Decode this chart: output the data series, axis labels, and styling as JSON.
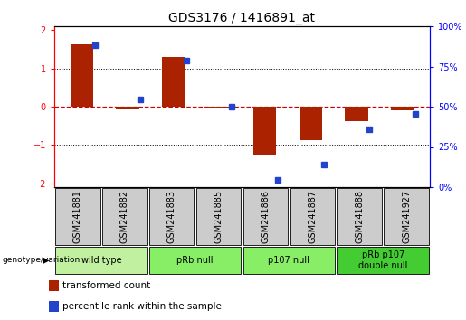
{
  "title": "GDS3176 / 1416891_at",
  "samples": [
    "GSM241881",
    "GSM241882",
    "GSM241883",
    "GSM241885",
    "GSM241886",
    "GSM241887",
    "GSM241888",
    "GSM241927"
  ],
  "red_values": [
    1.62,
    -0.06,
    1.3,
    -0.05,
    -1.28,
    -0.88,
    -0.38,
    -0.1
  ],
  "blue_values": [
    90,
    55,
    80,
    50,
    2,
    12,
    35,
    45
  ],
  "groups": [
    {
      "label": "wild type",
      "start": 0,
      "end": 2,
      "color": "#c0f0a0"
    },
    {
      "label": "pRb null",
      "start": 2,
      "end": 4,
      "color": "#88ee66"
    },
    {
      "label": "p107 null",
      "start": 4,
      "end": 6,
      "color": "#88ee66"
    },
    {
      "label": "pRb p107\ndouble null",
      "start": 6,
      "end": 8,
      "color": "#44cc33"
    }
  ],
  "ylim_left": [
    -2.1,
    2.1
  ],
  "bar_color": "#aa2200",
  "dot_color": "#2244cc",
  "zero_line_color": "#cc0000",
  "bg_label": "#cccccc",
  "title_fontsize": 10,
  "tick_fontsize": 7,
  "label_fontsize": 7,
  "legend_fontsize": 7.5
}
